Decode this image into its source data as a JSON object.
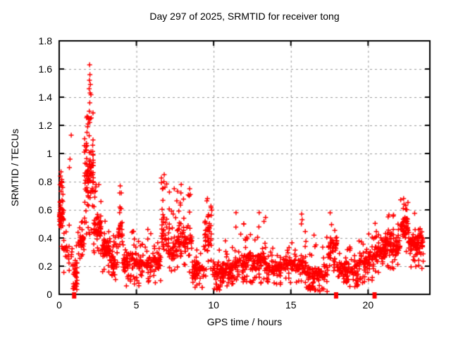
{
  "page": {
    "background_color": "#ffffff",
    "text_color": "#000000"
  },
  "chart_data": {
    "type": "scatter",
    "title": "Day 297 of 2025, SRMTID for receiver tong",
    "xlabel": "GPS time / hours",
    "ylabel": "SRMTID / TECUs",
    "xlim": [
      0,
      24
    ],
    "ylim": [
      0,
      1.8
    ],
    "xticks": {
      "values": [
        0,
        5,
        10,
        15,
        20
      ],
      "labels": [
        "0",
        "5",
        "10",
        "15",
        "20"
      ]
    },
    "yticks": {
      "values": [
        0,
        0.2,
        0.4,
        0.6,
        0.8,
        1.0,
        1.2,
        1.4,
        1.6,
        1.8
      ],
      "labels": [
        "0",
        "0.2",
        "0.4",
        "0.6",
        "0.8",
        "1",
        "1.2",
        "1.4",
        "1.6",
        "1.8"
      ]
    },
    "grid": {
      "visible": true,
      "color": "#999999",
      "dash": [
        3,
        4
      ]
    },
    "border_color": "#000000",
    "marker": {
      "shape": "plus",
      "color": "#ff0000",
      "size": 7
    },
    "legend": null,
    "peak_point": {
      "x": 1.97,
      "y": 1.63
    },
    "zero_value_markers_x": [
      0.97,
      17.93,
      20.42
    ],
    "outlier_points": [
      [
        1.97,
        1.63
      ],
      [
        1.99,
        1.56
      ],
      [
        1.96,
        1.52
      ],
      [
        2.02,
        1.49
      ],
      [
        1.94,
        1.46
      ],
      [
        2.0,
        1.43
      ],
      [
        1.98,
        1.36
      ],
      [
        1.95,
        1.3
      ],
      [
        1.9,
        1.25
      ],
      [
        1.87,
        1.21
      ],
      [
        1.84,
        1.19
      ],
      [
        1.8,
        1.15
      ],
      [
        0.78,
        1.13
      ],
      [
        0.7,
        0.96
      ],
      [
        0.66,
        0.9
      ],
      [
        0.12,
        0.87
      ],
      [
        0.08,
        0.84
      ],
      [
        0.16,
        0.8
      ],
      [
        3.95,
        0.77
      ],
      [
        3.92,
        0.72
      ],
      [
        6.8,
        0.85
      ],
      [
        6.78,
        0.8
      ],
      [
        6.85,
        0.76
      ],
      [
        7.45,
        0.75
      ],
      [
        7.9,
        0.78
      ],
      [
        7.88,
        0.72
      ],
      [
        8.45,
        0.75
      ],
      [
        8.42,
        0.7
      ],
      [
        9.6,
        0.68
      ],
      [
        11.45,
        0.58
      ],
      [
        12.95,
        0.58
      ],
      [
        15.7,
        0.57
      ],
      [
        15.73,
        0.53
      ],
      [
        15.68,
        0.5
      ],
      [
        16.5,
        0.42
      ],
      [
        16.4,
        0.05
      ],
      [
        16.75,
        0.03
      ],
      [
        17.0,
        0.04
      ],
      [
        4.35,
        0.06
      ],
      [
        8.8,
        0.05
      ],
      [
        10.2,
        0.04
      ],
      [
        0.95,
        0.04
      ],
      [
        1.0,
        0.06
      ],
      [
        22.3,
        0.68
      ],
      [
        22.33,
        0.64
      ],
      [
        22.28,
        0.61
      ],
      [
        21.3,
        0.55
      ]
    ],
    "point_cloud": {
      "seed": 42,
      "column_spacing_hours": 0.1,
      "bands_format": [
        "x_start",
        "x_end",
        "count",
        "y_min",
        "core_min",
        "core_max",
        "y_max",
        "p_low_tail",
        "p_high_tail"
      ],
      "bands": [
        [
          0.02,
          0.28,
          50,
          0.3,
          0.45,
          0.65,
          0.88,
          0.15,
          0.18
        ],
        [
          0.28,
          0.85,
          24,
          0.15,
          0.2,
          0.38,
          0.55,
          0.1,
          0.12
        ],
        [
          0.85,
          1.2,
          34,
          0.03,
          0.08,
          0.3,
          0.36,
          0.35,
          0.05
        ],
        [
          1.2,
          1.62,
          40,
          0.25,
          0.3,
          0.44,
          0.52,
          0.08,
          0.1
        ],
        [
          1.62,
          1.92,
          48,
          0.35,
          0.55,
          1.05,
          1.3,
          0.08,
          0.15
        ],
        [
          1.92,
          2.22,
          50,
          0.4,
          0.6,
          1.15,
          1.58,
          0.08,
          0.15
        ],
        [
          2.22,
          2.75,
          60,
          0.28,
          0.38,
          0.6,
          0.8,
          0.08,
          0.1
        ],
        [
          2.75,
          3.35,
          55,
          0.15,
          0.25,
          0.42,
          0.52,
          0.1,
          0.08
        ],
        [
          3.35,
          3.8,
          45,
          0.1,
          0.16,
          0.32,
          0.42,
          0.1,
          0.08
        ],
        [
          3.8,
          4.1,
          28,
          0.2,
          0.3,
          0.58,
          0.77,
          0.05,
          0.12
        ],
        [
          4.1,
          5.1,
          75,
          0.07,
          0.15,
          0.33,
          0.47,
          0.12,
          0.08
        ],
        [
          5.1,
          6.0,
          65,
          0.06,
          0.12,
          0.3,
          0.5,
          0.12,
          0.08
        ],
        [
          6.0,
          6.6,
          40,
          0.08,
          0.14,
          0.32,
          0.45,
          0.1,
          0.1
        ],
        [
          6.6,
          7.0,
          35,
          0.2,
          0.28,
          0.6,
          0.85,
          0.05,
          0.15
        ],
        [
          7.0,
          7.6,
          45,
          0.15,
          0.2,
          0.45,
          0.75,
          0.08,
          0.12
        ],
        [
          7.6,
          8.0,
          35,
          0.18,
          0.25,
          0.5,
          0.78,
          0.06,
          0.12
        ],
        [
          8.0,
          8.6,
          45,
          0.15,
          0.22,
          0.5,
          0.75,
          0.08,
          0.12
        ],
        [
          8.6,
          9.4,
          60,
          0.04,
          0.1,
          0.26,
          0.36,
          0.15,
          0.06
        ],
        [
          9.4,
          9.9,
          45,
          0.12,
          0.25,
          0.55,
          0.68,
          0.1,
          0.15
        ],
        [
          9.9,
          10.6,
          55,
          0.03,
          0.08,
          0.22,
          0.32,
          0.15,
          0.06
        ],
        [
          10.6,
          11.3,
          55,
          0.05,
          0.1,
          0.26,
          0.5,
          0.12,
          0.08
        ],
        [
          11.3,
          12.3,
          75,
          0.08,
          0.13,
          0.3,
          0.55,
          0.1,
          0.1
        ],
        [
          12.3,
          13.4,
          85,
          0.08,
          0.13,
          0.32,
          0.58,
          0.1,
          0.1
        ],
        [
          13.4,
          14.6,
          85,
          0.07,
          0.12,
          0.26,
          0.4,
          0.12,
          0.08
        ],
        [
          14.6,
          15.4,
          60,
          0.08,
          0.14,
          0.3,
          0.4,
          0.1,
          0.08
        ],
        [
          15.4,
          16.0,
          45,
          0.08,
          0.12,
          0.28,
          0.45,
          0.1,
          0.1
        ],
        [
          16.0,
          17.4,
          100,
          0.02,
          0.08,
          0.22,
          0.42,
          0.18,
          0.08
        ],
        [
          17.4,
          18.0,
          50,
          0.15,
          0.22,
          0.45,
          0.62,
          0.08,
          0.1
        ],
        [
          18.0,
          19.4,
          95,
          0.05,
          0.1,
          0.25,
          0.35,
          0.12,
          0.08
        ],
        [
          19.4,
          20.4,
          75,
          0.08,
          0.15,
          0.33,
          0.47,
          0.1,
          0.1
        ],
        [
          20.4,
          21.1,
          65,
          0.12,
          0.2,
          0.4,
          0.57,
          0.08,
          0.1
        ],
        [
          21.1,
          22.1,
          95,
          0.18,
          0.25,
          0.45,
          0.57,
          0.08,
          0.08
        ],
        [
          22.1,
          22.6,
          55,
          0.25,
          0.35,
          0.6,
          0.68,
          0.05,
          0.1
        ],
        [
          22.6,
          23.6,
          85,
          0.18,
          0.26,
          0.45,
          0.6,
          0.1,
          0.06
        ]
      ]
    }
  }
}
